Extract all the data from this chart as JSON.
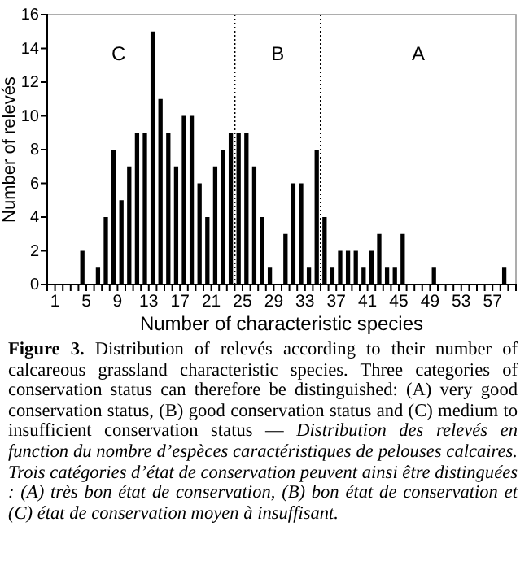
{
  "chart_data": {
    "type": "histogram",
    "xlabel": "Number of characteristic species",
    "ylabel": "Number of relevés",
    "bins": [
      1,
      2,
      3,
      4,
      5,
      6,
      7,
      8,
      9,
      10,
      11,
      12,
      13,
      14,
      15,
      16,
      17,
      18,
      19,
      20,
      21,
      22,
      23,
      24,
      25,
      26,
      27,
      28,
      29,
      30,
      31,
      32,
      33,
      34,
      35,
      36,
      37,
      38,
      39,
      40,
      41,
      42,
      43,
      44,
      45,
      46,
      47,
      48,
      49,
      50,
      51,
      52,
      53,
      54,
      55,
      56,
      57,
      58,
      59
    ],
    "values": [
      0,
      0,
      0,
      2,
      0,
      1,
      4,
      8,
      5,
      7,
      9,
      9,
      15,
      11,
      9,
      7,
      10,
      10,
      6,
      4,
      7,
      8,
      9,
      9,
      9,
      7,
      4,
      1,
      0,
      3,
      6,
      6,
      1,
      8,
      4,
      1,
      2,
      2,
      2,
      1,
      2,
      3,
      1,
      1,
      3,
      0,
      0,
      0,
      1,
      0,
      0,
      0,
      0,
      0,
      0,
      0,
      0,
      1
    ],
    "color": "#000000",
    "xlim": [
      0,
      60
    ],
    "ylim": [
      0,
      16
    ],
    "xticks": [
      1,
      {
        "value": 2,
        "label": null
      },
      {
        "value": 3,
        "label": null
      },
      {
        "value": 4,
        "label": null
      },
      5,
      {
        "value": 6,
        "label": null
      },
      {
        "value": 7,
        "label": null
      },
      {
        "value": 8,
        "label": null
      },
      9,
      {
        "value": 10,
        "label": null
      },
      {
        "value": 11,
        "label": null
      },
      {
        "value": 12,
        "label": null
      },
      13,
      {
        "value": 14,
        "label": null
      },
      {
        "value": 15,
        "label": null
      },
      {
        "value": 16,
        "label": null
      },
      17,
      {
        "value": 18,
        "label": null
      },
      {
        "value": 19,
        "label": null
      },
      {
        "value": 20,
        "label": null
      },
      21,
      {
        "value": 22,
        "label": null
      },
      {
        "value": 23,
        "label": null
      },
      {
        "value": 24,
        "label": null
      },
      25,
      {
        "value": 26,
        "label": null
      },
      {
        "value": 27,
        "label": null
      },
      {
        "value": 28,
        "label": null
      },
      29,
      {
        "value": 30,
        "label": null
      },
      {
        "value": 31,
        "label": null
      },
      {
        "value": 32,
        "label": null
      },
      33,
      {
        "value": 34,
        "label": null
      },
      {
        "value": 35,
        "label": null
      },
      {
        "value": 36,
        "label": null
      },
      37,
      {
        "value": 38,
        "label": null
      },
      {
        "value": 39,
        "label": null
      },
      {
        "value": 40,
        "label": null
      },
      41,
      {
        "value": 42,
        "label": null
      },
      {
        "value": 43,
        "label": null
      },
      {
        "value": 44,
        "label": null
      },
      45,
      {
        "value": 46,
        "label": null
      },
      {
        "value": 47,
        "label": null
      },
      {
        "value": 48,
        "label": null
      },
      49,
      {
        "value": 50,
        "label": null
      },
      {
        "value": 51,
        "label": null
      },
      {
        "value": 52,
        "label": null
      },
      53,
      {
        "value": 54,
        "label": null
      },
      {
        "value": 55,
        "label": null
      },
      {
        "value": 56,
        "label": null
      },
      57,
      {
        "value": 58,
        "label": null
      },
      {
        "value": 59,
        "label": null
      }
    ],
    "yticks": [
      0,
      2,
      4,
      6,
      8,
      10,
      12,
      14,
      16
    ],
    "grid": false,
    "ref_lines": [
      {
        "axis": "x",
        "value": 24,
        "line_style": "dotted",
        "color": "#000000"
      },
      {
        "axis": "x",
        "value": 35,
        "line_style": "dotted",
        "color": "#000000"
      }
    ],
    "annotations": [
      "C",
      "B",
      "A",
      "Figure 3.",
      "Distribution of relevés according to their number of calcareous grassland characteristic species. Three categories of conservation status can therefore be distinguished: (A) very good conservation status, (B) good conservation status and (C) medium to insufficient conservation status —",
      "Distribution des relevés en function du nombre d’espèces caractéristiques de pelouses calcaires. Trois catégories d’état de conservation peuvent ainsi être distinguées : (A) très bon état de conservation, (B) bon état de conservation et (C) état de conservation moyen à insuffisant."
    ]
  }
}
